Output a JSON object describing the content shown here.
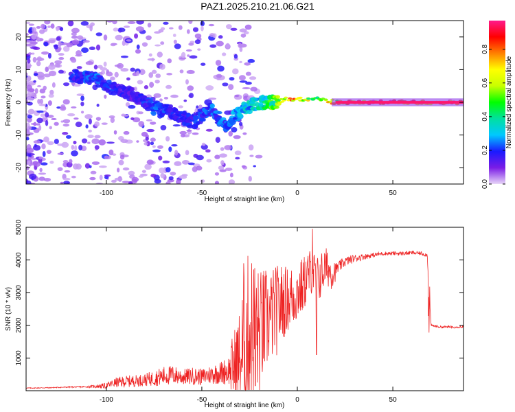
{
  "title": "PAZ1.2025.210.21.06.G21",
  "chart_data": [
    {
      "type": "heatmap",
      "xlabel": "Height of straight line (km)",
      "ylabel": "Frequency (Hz)",
      "xlim": [
        -142,
        87
      ],
      "ylim": [
        -25,
        25
      ],
      "xticks": [
        -100,
        -50,
        0,
        50
      ],
      "yticks": [
        -20,
        -10,
        0,
        10,
        20
      ],
      "tick_labels_x": [
        "-100",
        "-50",
        "0",
        "50"
      ],
      "tick_labels_y": [
        "-20",
        "-10",
        "0",
        "10",
        "20"
      ],
      "colorbar": {
        "label": "Normalized spectral amplitude",
        "range": [
          0,
          0.97
        ],
        "ticks": [
          0.0,
          0.2,
          0.4,
          0.6,
          0.8
        ],
        "tick_labels": [
          "0.0",
          "0.2",
          "0.4",
          "0.6",
          "0.8"
        ],
        "colormap": [
          "#e8d6f8",
          "#7a1ce6",
          "#1a1aff",
          "#00c8ff",
          "#00e0a0",
          "#00ff00",
          "#c8ff00",
          "#ffff00",
          "#ff8000",
          "#ff0000",
          "#ff1a8c"
        ]
      },
      "ridge": {
        "x": [
          -115,
          -105,
          -95,
          -85,
          -75,
          -65,
          -55,
          -45,
          -38,
          -32,
          -25,
          -18,
          -10,
          -5,
          0,
          10,
          20,
          30,
          40,
          50,
          60,
          70,
          80,
          87
        ],
        "frequency": [
          8,
          7,
          4,
          2,
          -2,
          -3,
          -6,
          -2,
          -7,
          -4,
          -1,
          0,
          0,
          1,
          1,
          1,
          0,
          0,
          0,
          0,
          0,
          0,
          0,
          0
        ],
        "amplitude": [
          0.2,
          0.25,
          0.2,
          0.15,
          0.25,
          0.2,
          0.2,
          0.25,
          0.25,
          0.3,
          0.35,
          0.4,
          0.6,
          0.75,
          0.9,
          0.55,
          0.8,
          0.85,
          0.95,
          0.95,
          0.95,
          0.95,
          0.95,
          0.95
        ]
      },
      "grid": false
    },
    {
      "type": "line",
      "xlabel": "Height of straight line (km)",
      "ylabel": "SNR (10 * v/v)",
      "xlim": [
        -142,
        87
      ],
      "ylim": [
        0,
        5000
      ],
      "xticks": [
        -100,
        -50,
        0,
        50
      ],
      "yticks": [
        1000,
        2000,
        3000,
        4000,
        5000
      ],
      "tick_labels_x": [
        "-100",
        "-50",
        "0",
        "50"
      ],
      "tick_labels_y": [
        "1000",
        "2000",
        "3000",
        "4000",
        "5000"
      ],
      "color": "#ee2222",
      "series": [
        {
          "x": [
            -142,
            -130,
            -120,
            -110,
            -100,
            -95,
            -90,
            -85,
            -80,
            -75,
            -70,
            -65,
            -60,
            -55,
            -50,
            -45,
            -40,
            -35,
            -30,
            -27,
            -25,
            -22,
            -20,
            -18,
            -15,
            -12,
            -10,
            -8,
            -5,
            -2,
            0,
            3,
            5,
            8,
            10,
            13,
            15,
            18,
            20,
            25,
            30,
            35,
            40,
            45,
            50,
            55,
            60,
            65,
            68,
            70,
            75,
            80,
            87
          ],
          "y": [
            80,
            90,
            110,
            120,
            150,
            250,
            280,
            300,
            330,
            380,
            450,
            480,
            420,
            450,
            420,
            500,
            550,
            650,
            900,
            1500,
            1800,
            1900,
            1700,
            2000,
            2200,
            2400,
            2500,
            2700,
            2800,
            2900,
            3000,
            3200,
            3500,
            3700,
            3300,
            3600,
            3800,
            3600,
            3700,
            3950,
            4050,
            4100,
            4150,
            4200,
            4200,
            4200,
            4220,
            4200,
            4150,
            2000,
            1950,
            1950,
            1950
          ],
          "noise": [
            20,
            25,
            30,
            40,
            150,
            250,
            300,
            300,
            320,
            400,
            500,
            500,
            400,
            450,
            420,
            500,
            600,
            800,
            1700,
            2500,
            2600,
            2300,
            2000,
            1800,
            1500,
            1400,
            1400,
            1200,
            1000,
            1000,
            900,
            900,
            800,
            700,
            800,
            700,
            600,
            500,
            350,
            250,
            200,
            150,
            120,
            100,
            100,
            100,
            100,
            100,
            100,
            60,
            60,
            60,
            60
          ],
          "spikes": [
            {
              "x": 8,
              "y": 4950
            },
            {
              "x": 10,
              "y": 1100
            },
            {
              "x": -28,
              "y": 3900
            },
            {
              "x": -22,
              "y": 150
            }
          ]
        }
      ],
      "grid": false
    }
  ]
}
